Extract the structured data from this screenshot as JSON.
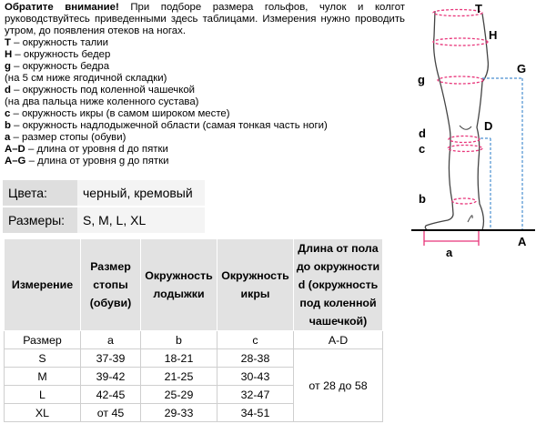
{
  "notes": {
    "intro_bold": "Обратите внимание!",
    "intro_rest": " При подборе размера гольфов, чулок и колгот руководствуйтесь приведенными здесь таблицами. Измерения нужно проводить утром, до появления отеков на ногах.",
    "lines": [
      {
        "key": "T",
        "text": " – окружность талии"
      },
      {
        "key": "H",
        "text": " – окружность бедер"
      },
      {
        "key": "g",
        "text": " – окружность бедра"
      },
      {
        "key": "",
        "text": "(на 5 см ниже ягодичной складки)"
      },
      {
        "key": "d",
        "text": " – окружность под коленной чашечкой"
      },
      {
        "key": "",
        "text": "(на два пальца ниже коленного сустава)"
      },
      {
        "key": "c",
        "text": " – окружность икры (в самом широком месте)"
      },
      {
        "key": "b",
        "text": " – окружность надлодыжечной области (самая тонкая часть ноги)"
      },
      {
        "key": "a",
        "text": " – размер стопы (обуви)"
      },
      {
        "key": "A–D",
        "text": " – длина от уровня d до пятки"
      },
      {
        "key": "A–G",
        "text": " – длина от уровня g до пятки"
      }
    ]
  },
  "info": {
    "colors_label": "Цвета:",
    "colors_value": "черный, кремовый",
    "sizes_label": "Размеры:",
    "sizes_value": "S, M, L, XL"
  },
  "size_table": {
    "headers": [
      "Измерение",
      "Размер стопы (обуви)",
      "Окружность лодыжки",
      "Окружность икры",
      "Длина от пола до окружности d (окружность под коленной чашечкой)"
    ],
    "subheader": [
      "Размер",
      "a",
      "b",
      "c",
      "A-D"
    ],
    "rows": [
      [
        "S",
        "37-39",
        "18-21",
        "28-38"
      ],
      [
        "M",
        "39-42",
        "21-25",
        "30-43"
      ],
      [
        "L",
        "42-45",
        "25-29",
        "32-47"
      ],
      [
        "XL",
        "от 45",
        "29-33",
        "34-51"
      ]
    ],
    "length_value": "от 28 до 58"
  },
  "diagram": {
    "labels": {
      "T": "T",
      "H": "H",
      "g": "g",
      "G": "G",
      "d": "d",
      "D": "D",
      "c": "c",
      "b": "b",
      "a": "a",
      "A": "A"
    },
    "colors": {
      "pink": "#e8357a",
      "blue": "#4a8fd0",
      "leg": "#444444"
    }
  }
}
